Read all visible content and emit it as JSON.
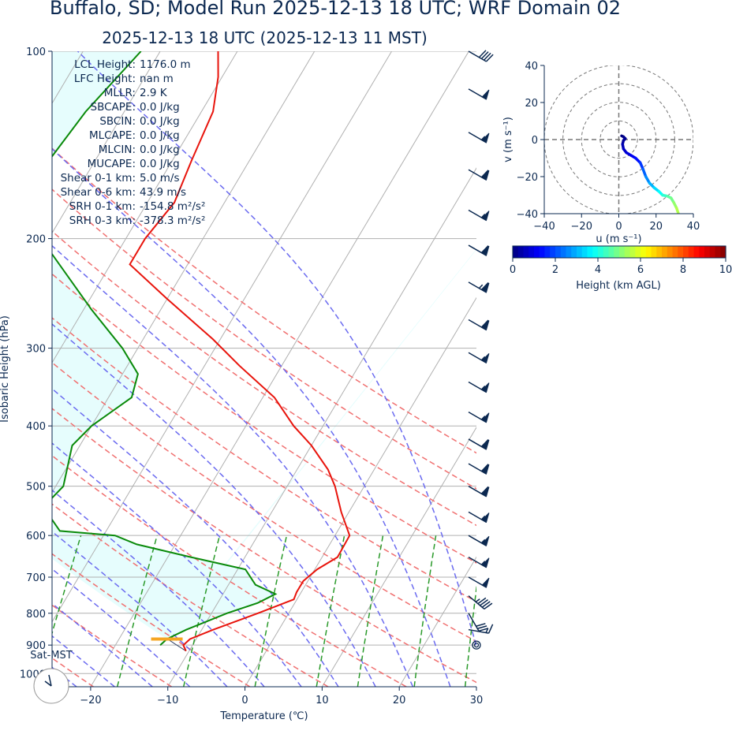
{
  "title": "Buffalo, SD; Model Run 2025-12-13 18 UTC; WRF Domain 02",
  "subtitle": "2025-12-13 18 UTC  (2025-12-13 11 MST)",
  "colors": {
    "text": "#0b2850",
    "temperature": "#e8140c",
    "dewpoint": "#0a8a0a",
    "dry_adiabat": "#f07070",
    "moist_adiabat": "#6b6bf0",
    "mixing_ratio": "#2a9a2a",
    "cape_fill": "#e6fdfd",
    "isotherm": "#b0b0b0",
    "lcl_marker": "#f5a623"
  },
  "params": [
    "LCL Height: 1176.0 m",
    "LFC Height: nan m",
    "MLLR: 2.9 K",
    "SBCAPE: 0.0 J/kg",
    "SBCIN: 0.0 J/kg",
    "MLCAPE: 0.0 J/kg",
    "MLCIN: 0.0 J/kg",
    "MUCAPE: 0.0 J/kg",
    "Shear 0-1 km: 5.0 m/s",
    "Shear 0-6 km: 43.9 m/s",
    "SRH 0-1 km: -154.8 m²/s²",
    "SRH 0-3 km: -378.3 m²/s²"
  ],
  "clock_label": "Sat-MST",
  "chart_data": [
    {
      "type": "line",
      "name": "skew-t",
      "xlabel": "Temperature (℃)",
      "ylabel": "Isobaric Height (hPa)",
      "xlim": [
        -25,
        30
      ],
      "ylim": [
        1050,
        100
      ],
      "y_scale": "log",
      "skew_deg_c_per_decade": 48,
      "xticks": [
        -20,
        -10,
        0,
        10,
        20,
        30
      ],
      "yticks": [
        100,
        200,
        300,
        400,
        500,
        600,
        700,
        800,
        900,
        1000
      ],
      "grid": true,
      "series": [
        {
          "id": "temperature",
          "points": [
            {
              "p": 920,
              "t": -10.4
            },
            {
              "p": 900,
              "t": -11.2
            },
            {
              "p": 880,
              "t": -10.8
            },
            {
              "p": 850,
              "t": -8.5
            },
            {
              "p": 800,
              "t": -4.0
            },
            {
              "p": 760,
              "t": -0.4
            },
            {
              "p": 740,
              "t": -0.6
            },
            {
              "p": 710,
              "t": -0.6
            },
            {
              "p": 680,
              "t": 0.3
            },
            {
              "p": 650,
              "t": 2.0
            },
            {
              "p": 600,
              "t": 1.9
            },
            {
              "p": 550,
              "t": -1.0
            },
            {
              "p": 500,
              "t": -3.8
            },
            {
              "p": 470,
              "t": -6.0
            },
            {
              "p": 430,
              "t": -10.0
            },
            {
              "p": 400,
              "t": -13.8
            },
            {
              "p": 360,
              "t": -18.5
            },
            {
              "p": 320,
              "t": -25.5
            },
            {
              "p": 290,
              "t": -31.0
            },
            {
              "p": 250,
              "t": -40.0
            },
            {
              "p": 220,
              "t": -47.5
            },
            {
              "p": 200,
              "t": -47.5
            },
            {
              "p": 175,
              "t": -46.5
            },
            {
              "p": 150,
              "t": -47.5
            },
            {
              "p": 125,
              "t": -48.5
            },
            {
              "p": 110,
              "t": -50.5
            },
            {
              "p": 100,
              "t": -52.5
            }
          ]
        },
        {
          "id": "dewpoint",
          "points": [
            {
              "p": 900,
              "t": -14.2
            },
            {
              "p": 880,
              "t": -13.8
            },
            {
              "p": 850,
              "t": -12.0
            },
            {
              "p": 800,
              "t": -8.0
            },
            {
              "p": 770,
              "t": -4.8
            },
            {
              "p": 745,
              "t": -3.2
            },
            {
              "p": 720,
              "t": -6.5
            },
            {
              "p": 680,
              "t": -9.0
            },
            {
              "p": 650,
              "t": -17.0
            },
            {
              "p": 620,
              "t": -25.0
            },
            {
              "p": 600,
              "t": -28.5
            },
            {
              "p": 590,
              "t": -36.0
            },
            {
              "p": 540,
              "t": -40.0
            },
            {
              "p": 500,
              "t": -39.0
            },
            {
              "p": 430,
              "t": -41.0
            },
            {
              "p": 400,
              "t": -40.0
            },
            {
              "p": 360,
              "t": -37.0
            },
            {
              "p": 330,
              "t": -38.0
            },
            {
              "p": 300,
              "t": -42.0
            },
            {
              "p": 260,
              "t": -49.0
            },
            {
              "p": 200,
              "t": -61.0
            },
            {
              "p": 165,
              "t": -67.0
            },
            {
              "p": 150,
              "t": -66.0
            },
            {
              "p": 125,
              "t": -65.0
            },
            {
              "p": 100,
              "t": -62.5
            }
          ]
        }
      ],
      "lcl": {
        "p": 880,
        "t": -13.8
      },
      "winds": [
        {
          "p": 100,
          "spd": 40,
          "dir": 300
        },
        {
          "p": 115,
          "spd": 50,
          "dir": 300
        },
        {
          "p": 135,
          "spd": 55,
          "dir": 300
        },
        {
          "p": 155,
          "spd": 60,
          "dir": 300
        },
        {
          "p": 180,
          "spd": 55,
          "dir": 300
        },
        {
          "p": 205,
          "spd": 60,
          "dir": 300
        },
        {
          "p": 235,
          "spd": 65,
          "dir": 300
        },
        {
          "p": 270,
          "spd": 60,
          "dir": 300
        },
        {
          "p": 305,
          "spd": 55,
          "dir": 300
        },
        {
          "p": 340,
          "spd": 55,
          "dir": 300
        },
        {
          "p": 380,
          "spd": 55,
          "dir": 300
        },
        {
          "p": 420,
          "spd": 60,
          "dir": 300
        },
        {
          "p": 460,
          "spd": 60,
          "dir": 300
        },
        {
          "p": 500,
          "spd": 60,
          "dir": 300
        },
        {
          "p": 550,
          "spd": 55,
          "dir": 300
        },
        {
          "p": 600,
          "spd": 55,
          "dir": 300
        },
        {
          "p": 650,
          "spd": 55,
          "dir": 300
        },
        {
          "p": 700,
          "spd": 50,
          "dir": 300
        },
        {
          "p": 750,
          "spd": 45,
          "dir": 310
        },
        {
          "p": 800,
          "spd": 30,
          "dir": 330
        },
        {
          "p": 850,
          "spd": 15,
          "dir": 280
        },
        {
          "p": 900,
          "spd": 0,
          "dir": 0
        }
      ]
    },
    {
      "type": "line",
      "name": "hodograph",
      "xlabel": "u (m s⁻¹)",
      "ylabel": "v (m s⁻¹)",
      "xlim": [
        -40,
        40
      ],
      "ylim": [
        -40,
        40
      ],
      "xticks": [
        -40,
        -20,
        0,
        20,
        40
      ],
      "yticks": [
        -40,
        -20,
        0,
        20,
        40
      ],
      "rings": [
        10,
        20,
        30,
        40
      ],
      "colorbar": {
        "label": "Height (km AGL)",
        "range": [
          0,
          10
        ],
        "ticks": [
          0,
          2,
          4,
          6,
          8,
          10
        ],
        "cmap": "jet"
      },
      "points": [
        {
          "u": 1.5,
          "v": 2.0,
          "h": 0.0
        },
        {
          "u": 2.5,
          "v": 1.5,
          "h": 0.1
        },
        {
          "u": 3.5,
          "v": 0.5,
          "h": 0.2
        },
        {
          "u": 2.5,
          "v": -0.5,
          "h": 0.3
        },
        {
          "u": 2.0,
          "v": -2.5,
          "h": 0.5
        },
        {
          "u": 2.5,
          "v": -5.0,
          "h": 0.7
        },
        {
          "u": 4.0,
          "v": -7.0,
          "h": 0.9
        },
        {
          "u": 6.5,
          "v": -8.5,
          "h": 1.1
        },
        {
          "u": 9.0,
          "v": -10.0,
          "h": 1.4
        },
        {
          "u": 11.5,
          "v": -12.5,
          "h": 1.8
        },
        {
          "u": 13.0,
          "v": -16.0,
          "h": 2.2
        },
        {
          "u": 14.5,
          "v": -20.0,
          "h": 2.6
        },
        {
          "u": 16.5,
          "v": -23.5,
          "h": 3.0
        },
        {
          "u": 19.0,
          "v": -26.0,
          "h": 3.4
        },
        {
          "u": 21.5,
          "v": -28.0,
          "h": 3.8
        },
        {
          "u": 23.5,
          "v": -30.0,
          "h": 4.2
        },
        {
          "u": 26.0,
          "v": -30.5,
          "h": 4.6
        },
        {
          "u": 28.0,
          "v": -31.5,
          "h": 4.9
        },
        {
          "u": 29.5,
          "v": -34.0,
          "h": 5.2
        },
        {
          "u": 31.0,
          "v": -37.0,
          "h": 5.5
        },
        {
          "u": 32.0,
          "v": -40.0,
          "h": 5.8
        }
      ]
    }
  ]
}
